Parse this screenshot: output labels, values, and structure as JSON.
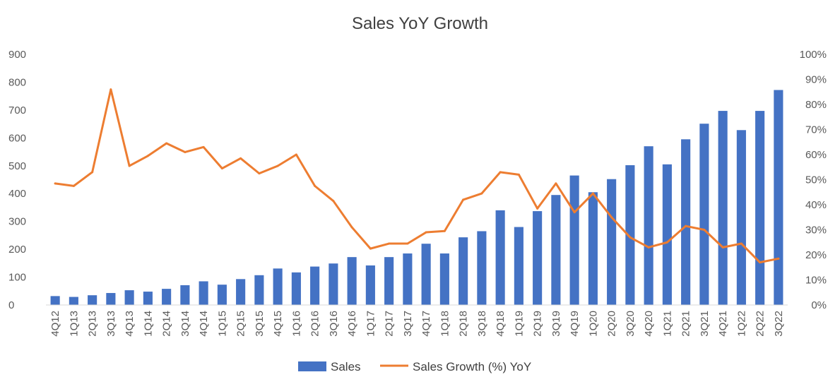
{
  "chart_data": {
    "type": "bar",
    "title": "Sales YoY Growth",
    "xlabel": "",
    "ylabel": "",
    "y2label": "",
    "categories": [
      "4Q12",
      "1Q13",
      "2Q13",
      "3Q13",
      "4Q13",
      "1Q14",
      "2Q14",
      "3Q14",
      "4Q14",
      "1Q15",
      "2Q15",
      "3Q15",
      "4Q15",
      "1Q16",
      "2Q16",
      "3Q16",
      "4Q16",
      "1Q17",
      "2Q17",
      "3Q17",
      "4Q17",
      "1Q18",
      "2Q18",
      "3Q18",
      "4Q18",
      "1Q19",
      "2Q19",
      "3Q19",
      "4Q19",
      "1Q20",
      "2Q20",
      "3Q20",
      "4Q20",
      "1Q21",
      "2Q21",
      "3Q21",
      "4Q21",
      "1Q22",
      "2Q22",
      "3Q22"
    ],
    "ylim": [
      0,
      900
    ],
    "y2lim": [
      0,
      100
    ],
    "yticks": [
      "0",
      "100",
      "200",
      "300",
      "400",
      "500",
      "600",
      "700",
      "800",
      "900"
    ],
    "y2ticks": [
      "0%",
      "10%",
      "20%",
      "30%",
      "40%",
      "50%",
      "60%",
      "70%",
      "80%",
      "90%",
      "100%"
    ],
    "grid": false,
    "legend_position": "bottom",
    "series": [
      {
        "name": "Sales",
        "type": "bar",
        "axis": "left",
        "color": "#4472C4",
        "values": [
          32,
          29,
          35,
          43,
          53,
          48,
          58,
          71,
          85,
          73,
          93,
          107,
          131,
          117,
          138,
          149,
          172,
          142,
          172,
          185,
          220,
          185,
          243,
          265,
          340,
          280,
          337,
          395,
          465,
          405,
          452,
          502,
          570,
          505,
          595,
          651,
          697,
          628,
          697,
          772
        ]
      },
      {
        "name": "Sales Growth (%) YoY",
        "type": "line",
        "axis": "right",
        "color": "#ED7D31",
        "values": [
          48.5,
          47.5,
          53,
          86,
          55.5,
          59.5,
          64.5,
          61,
          63,
          54.5,
          58.5,
          52.5,
          55.5,
          60,
          47.5,
          41.5,
          31,
          22.5,
          24.5,
          24.5,
          29,
          29.5,
          42,
          44.5,
          53,
          52,
          38.5,
          48.5,
          37,
          44.5,
          35,
          27,
          23,
          25,
          31.5,
          30,
          23,
          24.5,
          17,
          18.5
        ]
      }
    ]
  }
}
